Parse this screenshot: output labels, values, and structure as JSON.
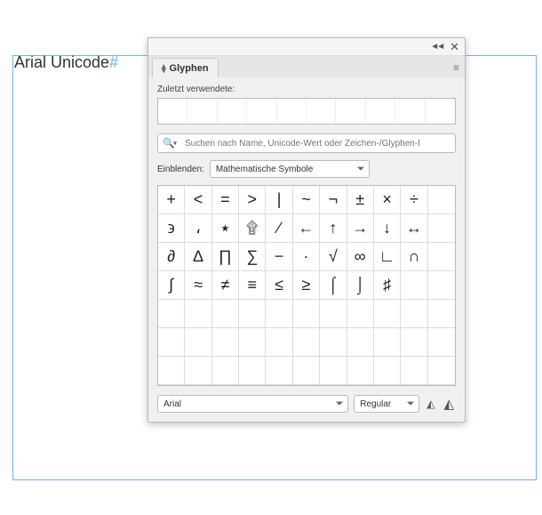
{
  "background": {
    "text": "Arial Unicode",
    "hash": "#",
    "frame_color": "#79aee8"
  },
  "panel": {
    "title": "Glyphen",
    "recent_label": "Zuletzt verwendete:",
    "search_placeholder": "Suchen nach Name, Unicode-Wert oder Zeichen-/Glyphen-I",
    "filter_label": "Einblenden:",
    "filter_value": "Mathematische Symbole",
    "font_value": "Arial",
    "style_value": "Regular",
    "colors": {
      "panel_bg": "#f0f0f0",
      "border": "#bbbbbb",
      "grid_line": "#dddddd"
    },
    "grid_cols": 11,
    "grid_rows": 7,
    "glyphs": [
      "+",
      "<",
      "=",
      ">",
      "|",
      "~",
      "¬",
      "±",
      "×",
      "÷",
      "϶",
      "،",
      "٭",
      "۩",
      "∕",
      "←",
      "↑",
      "→",
      "↓",
      "↔",
      "∂",
      "∆",
      "∏",
      "∑",
      "−",
      "∙",
      "√",
      "∞",
      "∟",
      "∩",
      "∫",
      "≈",
      "≠",
      "≡",
      "≤",
      "≥",
      "⌠",
      "⌡",
      "♯",
      ""
    ]
  }
}
